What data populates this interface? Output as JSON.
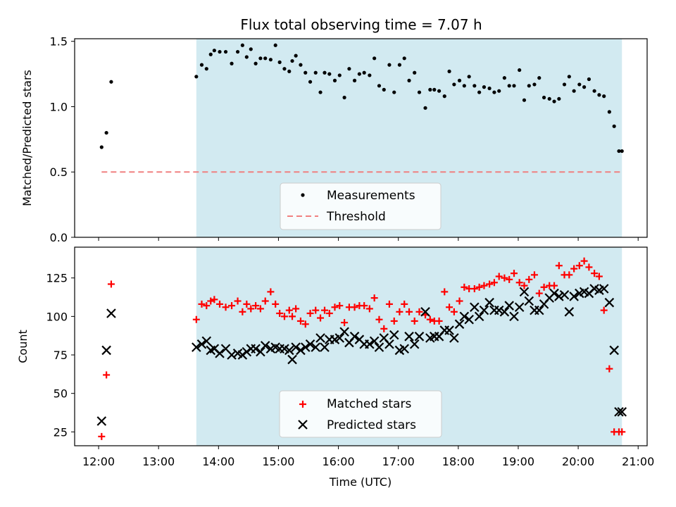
{
  "chart_data": [
    {
      "type": "scatter",
      "panel": "top",
      "title": "Flux total observing time = 7.07 h",
      "ylabel": "Matched/Predicted stars",
      "ylim": [
        0,
        1.52
      ],
      "yticks": [
        "0.0",
        "0.5",
        "1.0",
        "1.5"
      ],
      "ytick_values": [
        0,
        0.5,
        1.0,
        1.5
      ],
      "shaded_span": [
        13.63,
        20.73
      ],
      "threshold": {
        "name": "Threshold",
        "y": 0.5,
        "x": [
          12.05,
          20.73
        ],
        "color": "#f08080"
      },
      "legend": {
        "position": "lower-center",
        "entries": [
          "Measurements",
          "Threshold"
        ]
      },
      "series": [
        {
          "name": "Measurements",
          "color": "#000000",
          "x": [
            12.05,
            12.13,
            12.21,
            13.63,
            13.72,
            13.8,
            13.87,
            13.93,
            14.02,
            14.12,
            14.22,
            14.32,
            14.4,
            14.47,
            14.54,
            14.62,
            14.7,
            14.78,
            14.87,
            14.95,
            15.02,
            15.1,
            15.18,
            15.23,
            15.29,
            15.37,
            15.45,
            15.53,
            15.62,
            15.7,
            15.77,
            15.85,
            15.94,
            16.02,
            16.1,
            16.18,
            16.27,
            16.35,
            16.43,
            16.52,
            16.6,
            16.68,
            16.76,
            16.85,
            16.93,
            17.02,
            17.1,
            17.18,
            17.27,
            17.35,
            17.45,
            17.53,
            17.6,
            17.68,
            17.77,
            17.85,
            17.93,
            18.02,
            18.1,
            18.18,
            18.27,
            18.35,
            18.43,
            18.52,
            18.6,
            18.68,
            18.77,
            18.85,
            18.93,
            19.02,
            19.1,
            19.18,
            19.27,
            19.35,
            19.43,
            19.52,
            19.6,
            19.68,
            19.77,
            19.85,
            19.93,
            20.02,
            20.1,
            20.18,
            20.27,
            20.35,
            20.43,
            20.52,
            20.6,
            20.68,
            20.73
          ],
          "y": [
            0.69,
            0.8,
            1.19,
            1.23,
            1.32,
            1.29,
            1.4,
            1.43,
            1.42,
            1.42,
            1.33,
            1.42,
            1.47,
            1.38,
            1.44,
            1.33,
            1.37,
            1.37,
            1.36,
            1.47,
            1.34,
            1.29,
            1.27,
            1.35,
            1.39,
            1.32,
            1.26,
            1.19,
            1.26,
            1.11,
            1.26,
            1.25,
            1.2,
            1.24,
            1.07,
            1.29,
            1.2,
            1.25,
            1.26,
            1.24,
            1.37,
            1.16,
            1.13,
            1.32,
            1.11,
            1.32,
            1.37,
            1.2,
            1.26,
            1.11,
            0.99,
            1.13,
            1.13,
            1.12,
            1.08,
            1.27,
            1.17,
            1.2,
            1.16,
            1.23,
            1.16,
            1.11,
            1.15,
            1.14,
            1.11,
            1.12,
            1.22,
            1.16,
            1.16,
            1.28,
            1.05,
            1.16,
            1.17,
            1.22,
            1.07,
            1.06,
            1.04,
            1.06,
            1.17,
            1.23,
            1.12,
            1.17,
            1.15,
            1.21,
            1.12,
            1.09,
            1.08,
            0.96,
            0.85,
            0.66,
            0.66
          ]
        }
      ]
    },
    {
      "type": "scatter",
      "panel": "bottom",
      "xlabel": "Time (UTC)",
      "ylabel": "Count",
      "xlim": [
        11.6,
        21.15
      ],
      "ylim": [
        16,
        145
      ],
      "xticks": [
        "12:00",
        "13:00",
        "14:00",
        "15:00",
        "16:00",
        "17:00",
        "18:00",
        "19:00",
        "20:00",
        "21:00"
      ],
      "xtick_values": [
        12,
        13,
        14,
        15,
        16,
        17,
        18,
        19,
        20,
        21
      ],
      "yticks": [
        "25",
        "50",
        "75",
        "100",
        "125"
      ],
      "ytick_values": [
        25,
        50,
        75,
        100,
        125
      ],
      "shaded_span": [
        13.63,
        20.73
      ],
      "legend": {
        "position": "lower-center",
        "entries": [
          "Matched stars",
          "Predicted stars"
        ]
      },
      "series": [
        {
          "name": "Matched stars",
          "marker": "+",
          "color": "#ff0000",
          "x": [
            12.05,
            12.13,
            12.21,
            13.63,
            13.72,
            13.8,
            13.87,
            13.93,
            14.02,
            14.12,
            14.22,
            14.32,
            14.4,
            14.47,
            14.54,
            14.62,
            14.7,
            14.78,
            14.87,
            14.95,
            15.02,
            15.1,
            15.18,
            15.23,
            15.29,
            15.37,
            15.45,
            15.53,
            15.62,
            15.7,
            15.77,
            15.85,
            15.94,
            16.02,
            16.1,
            16.18,
            16.27,
            16.35,
            16.43,
            16.52,
            16.6,
            16.68,
            16.76,
            16.85,
            16.93,
            17.02,
            17.1,
            17.18,
            17.27,
            17.35,
            17.45,
            17.53,
            17.6,
            17.68,
            17.77,
            17.85,
            17.93,
            18.02,
            18.1,
            18.18,
            18.27,
            18.35,
            18.43,
            18.52,
            18.6,
            18.68,
            18.77,
            18.85,
            18.93,
            19.02,
            19.1,
            19.18,
            19.27,
            19.35,
            19.43,
            19.52,
            19.6,
            19.68,
            19.77,
            19.85,
            19.93,
            20.02,
            20.1,
            20.18,
            20.27,
            20.35,
            20.43,
            20.52,
            20.6,
            20.68,
            20.73
          ],
          "y": [
            22,
            62,
            121,
            98,
            108,
            107,
            110,
            111,
            108,
            106,
            107,
            110,
            103,
            108,
            105,
            107,
            105,
            110,
            116,
            108,
            102,
            100,
            104,
            100,
            105,
            97,
            95,
            102,
            104,
            99,
            104,
            102,
            106,
            107,
            96,
            106,
            106,
            107,
            107,
            105,
            112,
            98,
            92,
            108,
            97,
            103,
            108,
            103,
            97,
            103,
            101,
            98,
            97,
            97,
            116,
            106,
            103,
            110,
            119,
            118,
            118,
            119,
            120,
            121,
            122,
            126,
            125,
            124,
            128,
            122,
            120,
            124,
            127,
            115,
            119,
            120,
            120,
            133,
            127,
            127,
            131,
            133,
            136,
            132,
            128,
            126,
            104,
            66,
            25,
            25,
            25
          ]
        },
        {
          "name": "Predicted stars",
          "marker": "x",
          "color": "#000000",
          "x": [
            12.05,
            12.13,
            12.21,
            13.63,
            13.72,
            13.8,
            13.87,
            13.93,
            14.02,
            14.12,
            14.22,
            14.32,
            14.4,
            14.47,
            14.54,
            14.62,
            14.7,
            14.78,
            14.87,
            14.95,
            15.02,
            15.1,
            15.18,
            15.23,
            15.29,
            15.37,
            15.45,
            15.53,
            15.62,
            15.7,
            15.77,
            15.85,
            15.94,
            16.02,
            16.1,
            16.18,
            16.27,
            16.35,
            16.43,
            16.52,
            16.6,
            16.68,
            16.76,
            16.85,
            16.93,
            17.02,
            17.1,
            17.18,
            17.27,
            17.35,
            17.45,
            17.53,
            17.6,
            17.68,
            17.77,
            17.85,
            17.93,
            18.02,
            18.1,
            18.18,
            18.27,
            18.35,
            18.43,
            18.52,
            18.6,
            18.68,
            18.77,
            18.85,
            18.93,
            19.02,
            19.1,
            19.18,
            19.27,
            19.35,
            19.43,
            19.52,
            19.6,
            19.68,
            19.77,
            19.85,
            19.93,
            20.02,
            20.1,
            20.18,
            20.27,
            20.35,
            20.43,
            20.52,
            20.6,
            20.68,
            20.73
          ],
          "y": [
            32,
            78,
            102,
            80,
            82,
            84,
            78,
            79,
            76,
            79,
            75,
            76,
            75,
            77,
            79,
            79,
            77,
            81,
            79,
            80,
            79,
            79,
            78,
            72,
            80,
            78,
            80,
            82,
            80,
            86,
            80,
            85,
            85,
            86,
            90,
            83,
            87,
            85,
            82,
            82,
            84,
            80,
            86,
            82,
            88,
            78,
            79,
            87,
            82,
            87,
            103,
            86,
            87,
            87,
            91,
            91,
            86,
            95,
            100,
            98,
            106,
            100,
            104,
            109,
            104,
            104,
            103,
            107,
            100,
            106,
            116,
            110,
            104,
            104,
            108,
            112,
            115,
            113,
            114,
            103,
            113,
            115,
            116,
            115,
            118,
            117,
            118,
            109,
            78,
            38,
            38
          ]
        }
      ]
    }
  ]
}
